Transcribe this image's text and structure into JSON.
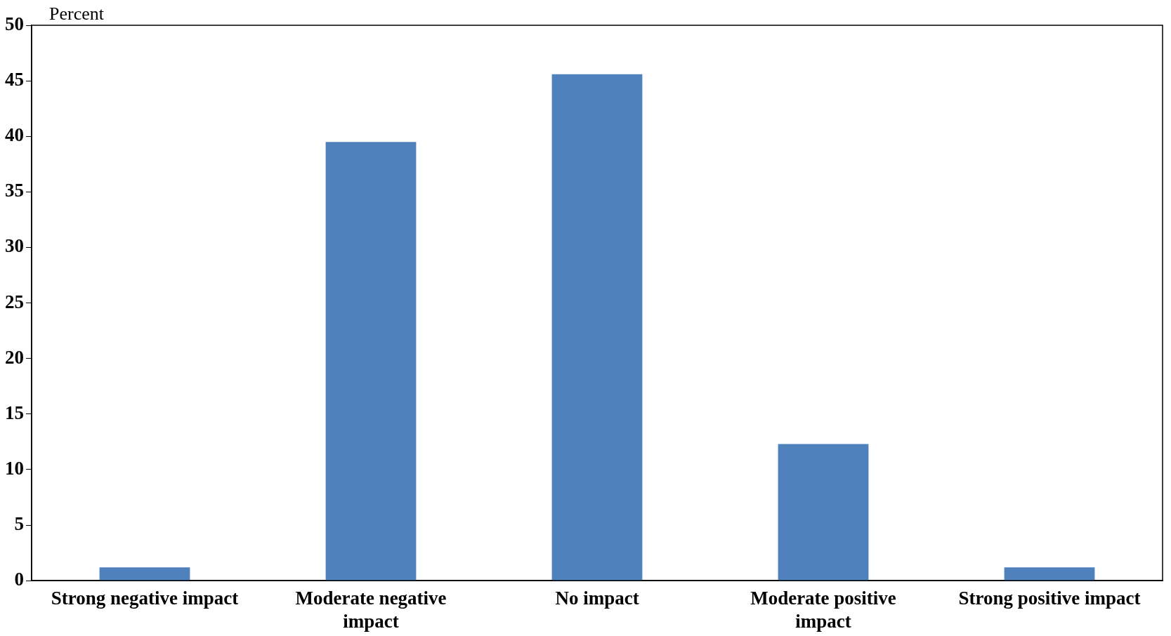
{
  "chart_data": {
    "type": "bar",
    "ylabel": "Percent",
    "categories": [
      "Strong negative impact",
      "Moderate negative impact",
      "No impact",
      "Moderate positive impact",
      "Strong positive impact"
    ],
    "values": [
      1.2,
      39.5,
      45.6,
      12.3,
      1.2
    ],
    "color": "#4f81bd",
    "ylim": [
      0,
      50
    ],
    "yticks": [
      0,
      5,
      10,
      15,
      20,
      25,
      30,
      35,
      40,
      45,
      50
    ],
    "grid": false,
    "legend": false
  }
}
